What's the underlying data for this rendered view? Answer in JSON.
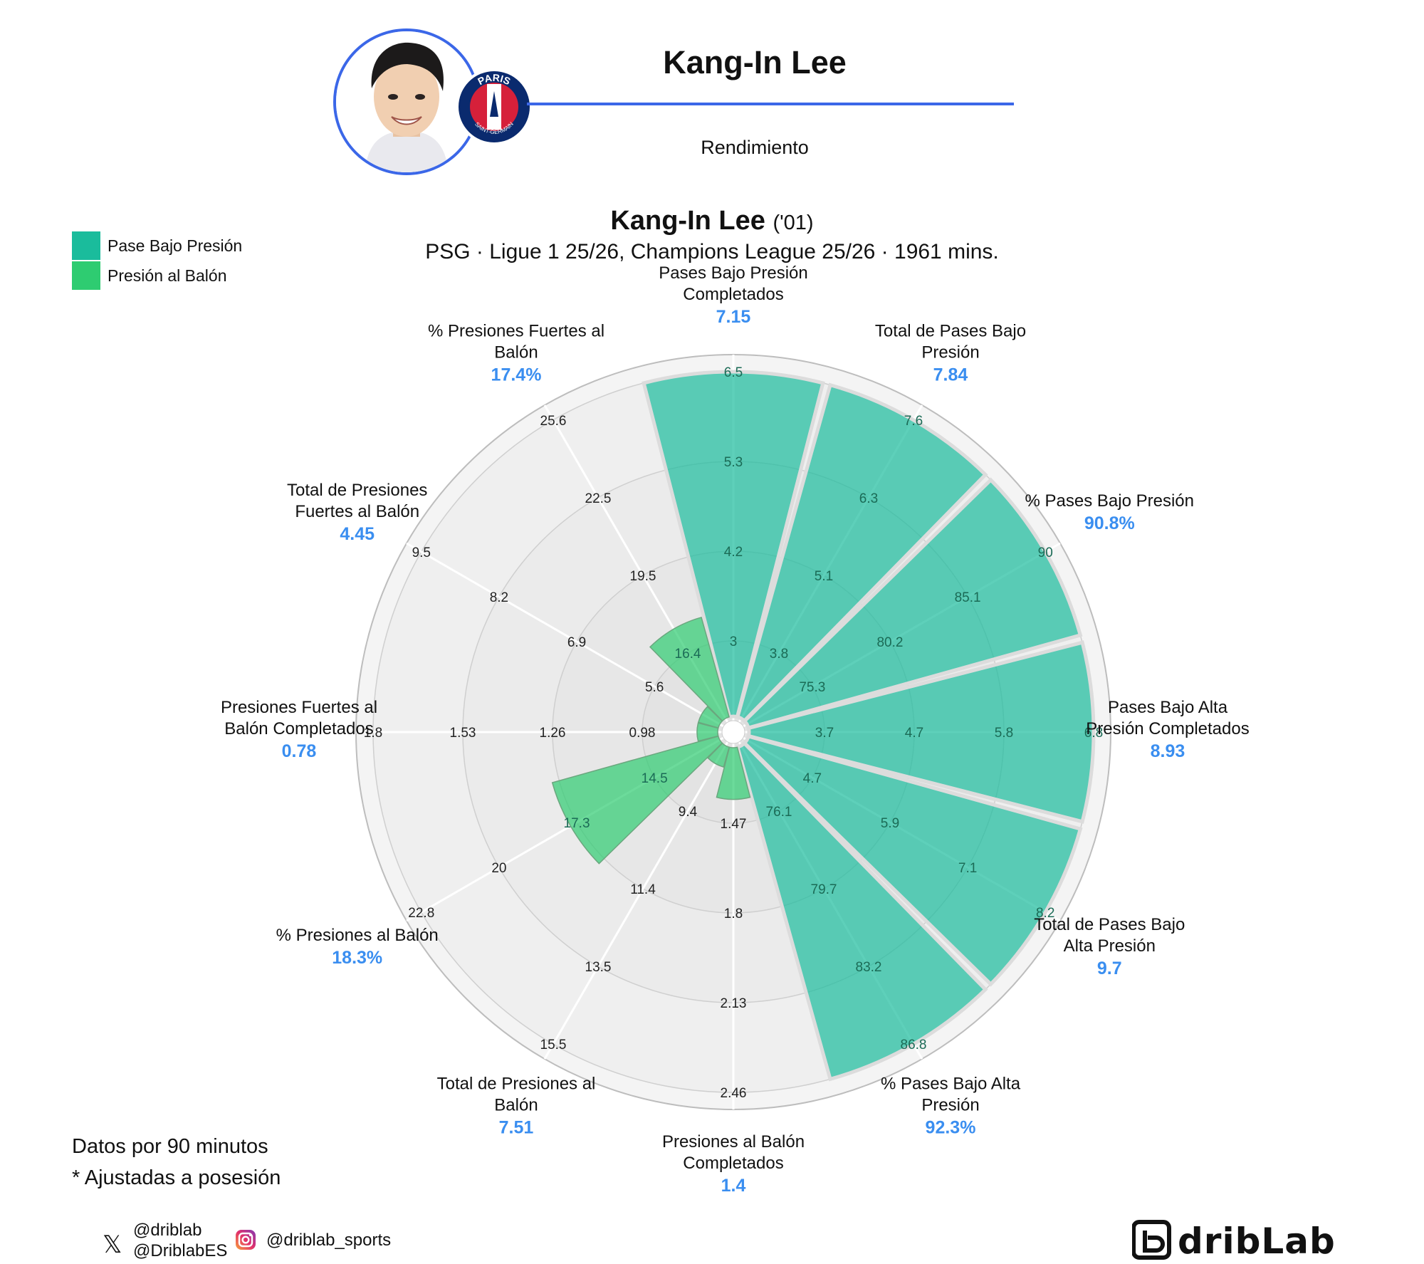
{
  "header": {
    "player_name": "Kang-In Lee",
    "subtitle": "Rendimiento",
    "crest_text_top": "PARIS",
    "crest_text_bottom": "SAINT-GERMAIN"
  },
  "chart_title": {
    "name": "Kang-In Lee",
    "year": "('01)",
    "subtitle": "PSG · Ligue 1 25/26, Champions League 25/26 · 1961 mins."
  },
  "legend": [
    {
      "label": "Pase Bajo Presión",
      "color": "#1abc9c"
    },
    {
      "label": "Presión al Balón",
      "color": "#2ecc71"
    }
  ],
  "notes": {
    "line1": "Datos por 90 minutos",
    "line2": "* Ajustadas a posesión"
  },
  "social": {
    "x_handle_1": "@driblab",
    "x_handle_2": "@DriblabES",
    "instagram": "@driblab_sports"
  },
  "brand": {
    "name": "dribLab"
  },
  "colors": {
    "pase_bajo_presion": "#1abc9c",
    "presion_al_balon": "#2ecc71",
    "value_label": "#3a8ef0",
    "accent": "#3b67e8"
  },
  "chart_data": {
    "type": "radar-bar",
    "series": [
      {
        "name": "Pase Bajo Presión",
        "color": "#1abc9c"
      },
      {
        "name": "Presión al Balón",
        "color": "#2ecc71"
      }
    ],
    "axes": [
      {
        "label": "Pases Bajo Presión Completados",
        "value": "7.15",
        "value_num": 7.15,
        "percentile": 1.0,
        "series": 0,
        "ticks": [
          "3",
          "4.2",
          "5.3",
          "6.5"
        ]
      },
      {
        "label": "Total de Pases Bajo Presión",
        "value": "7.84",
        "value_num": 7.84,
        "percentile": 1.0,
        "series": 0,
        "ticks": [
          "3.8",
          "5.1",
          "6.3",
          "7.6"
        ]
      },
      {
        "label": "% Pases Bajo Presión",
        "value": "90.8%",
        "value_num": 90.8,
        "percentile": 1.0,
        "series": 0,
        "ticks": [
          "75.3",
          "80.2",
          "85.1",
          "90"
        ]
      },
      {
        "label": "Pases Bajo Alta Presión Completados",
        "value": "8.93",
        "value_num": 8.93,
        "percentile": 1.0,
        "series": 0,
        "ticks": [
          "3.7",
          "4.7",
          "5.8",
          "6.8"
        ]
      },
      {
        "label": "Total de Pases Bajo Alta Presión",
        "value": "9.7",
        "value_num": 9.7,
        "percentile": 1.0,
        "series": 0,
        "ticks": [
          "4.7",
          "5.9",
          "7.1",
          "8.2"
        ]
      },
      {
        "label": "% Pases Bajo Alta Presión",
        "value": "92.3%",
        "value_num": 92.3,
        "percentile": 1.0,
        "series": 0,
        "ticks": [
          "76.1",
          "79.7",
          "83.2",
          "86.8"
        ]
      },
      {
        "label": "Presiones al Balón Completados",
        "value": "1.4",
        "value_num": 1.4,
        "percentile": 0.15,
        "series": 1,
        "ticks": [
          "1.47",
          "1.8",
          "2.13",
          "2.46"
        ]
      },
      {
        "label": "Total de Presiones al Balón",
        "value": "7.51",
        "value_num": 7.51,
        "percentile": 0.06,
        "series": 1,
        "ticks": [
          "9.4",
          "11.4",
          "13.5",
          "15.5"
        ]
      },
      {
        "label": "% Presiones al Balón",
        "value": "18.3%",
        "value_num": 18.3,
        "percentile": 0.5,
        "series": 1,
        "ticks": [
          "14.5",
          "17.3",
          "20",
          "22.8"
        ]
      },
      {
        "label": "Presiones Fuertes al Balón Completados",
        "value": "0.78",
        "value_num": 0.78,
        "percentile": 0.06,
        "series": 1,
        "ticks": [
          "0.98",
          "1.26",
          "1.53",
          "1.8"
        ]
      },
      {
        "label": "Total de Presiones Fuertes al Balón",
        "value": "4.45",
        "value_num": 4.45,
        "percentile": 0.06,
        "series": 1,
        "ticks": [
          "5.6",
          "6.9",
          "8.2",
          "9.5"
        ]
      },
      {
        "label": "% Presiones Fuertes al Balón",
        "value": "17.4%",
        "value_num": 17.4,
        "percentile": 0.3,
        "series": 1,
        "ticks": [
          "16.4",
          "19.5",
          "22.5",
          "25.6"
        ]
      }
    ]
  }
}
